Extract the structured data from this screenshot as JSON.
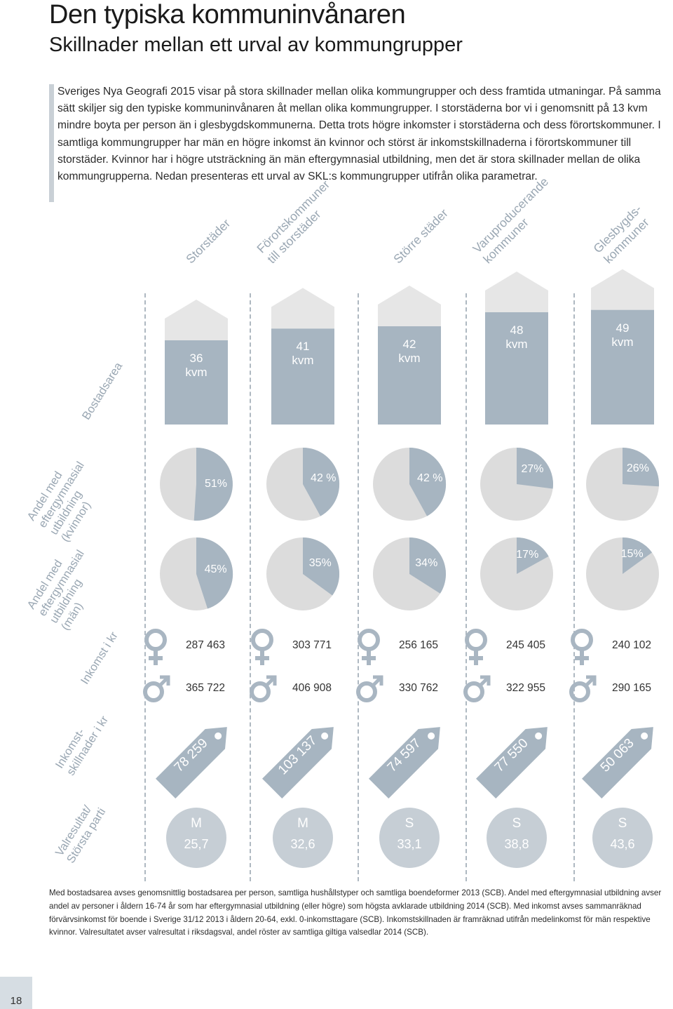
{
  "page": {
    "title": "Den typiska kommuninvånaren",
    "subtitle": "Skillnader mellan ett urval av kommungrupper",
    "intro": "Sveriges Nya Geografi 2015 visar på stora skillnader mellan olika kommungrupper och dess framtida utmaningar. På samma sätt skiljer sig den typiske kommuninvånaren åt mellan olika kommungrupper. I storstäderna bor vi i genomsnitt på 13 kvm mindre boyta per person än i glesbygdskommunerna. Detta trots högre inkomster i storstäderna och dess förortskommuner. I samtliga kommungrupper har män en högre inkomst än kvinnor och störst är inkomstskillnaderna i förortskommuner till storstäder. Kvinnor har i högre utsträckning än män eftergymnasial utbildning, men det är stora skillnader mellan de olika kommungrupperna. Nedan presenteras ett urval av SKL:s kommungrupper utifrån olika parametrar.",
    "footnote": "Med bostadsarea avses genomsnittlig bostadsarea per person, samtliga hushållstyper och samtliga boendeformer 2013 (SCB). Andel med eftergymnasial utbildning avser andel av personer i åldern 16-74 år som har eftergymnasial utbildning (eller högre) som högsta avklarade utbildning 2014 (SCB). Med inkomst avses sammanräknad förvärvsinkomst för boende i Sverige 31/12 2013 i åldern 20-64, exkl. 0-inkomsttagare (SCB). Inkomstskillnaden är framräknad utifrån medelinkomst för män respektive kvinnor. Valresultatet avser valresultat i riksdagsval, andel röster av samtliga giltiga valsedlar 2014 (SCB).",
    "page_number": "18"
  },
  "colors": {
    "accent": "#a7b5c1",
    "light": "#dcdcdc",
    "house_roof": "#e6e6e6",
    "icon": "#a9b6c2",
    "label": "#9aa7b3",
    "circle": "#c6ced5"
  },
  "row_labels": {
    "bostadsarea": "Bostadsarea",
    "women_edu": [
      "Andel med",
      "eftergymnasial",
      "utbildning",
      "(kvinnor)"
    ],
    "men_edu": [
      "Andel med",
      "eftergymnasial",
      "utbildning",
      "(män)"
    ],
    "income": "Inkomst i kr",
    "income_diff": [
      "Inkomst-",
      "skillnader i kr"
    ],
    "election": [
      "Valresultat/",
      "Största parti"
    ]
  },
  "chart_data": {
    "type": "table",
    "title": "Den typiska kommuninvånaren",
    "categories": [
      "Storstäder",
      "Förortskommuner till storstäder",
      "Större städer",
      "Varuproducerande kommuner",
      "Glesbygdskommuner"
    ],
    "header_lines": [
      [
        "Storstäder"
      ],
      [
        "Förortskommuner",
        "till storstäder"
      ],
      [
        "Större städer"
      ],
      [
        "Varuproducerande",
        "kommuner"
      ],
      [
        "Glesbygds-",
        "kommuner"
      ]
    ],
    "housing_kvm": [
      36,
      41,
      42,
      48,
      49
    ],
    "housing_labels": [
      [
        "36",
        "kvm"
      ],
      [
        "41",
        "kvm"
      ],
      [
        "42",
        "kvm"
      ],
      [
        "48",
        "kvm"
      ],
      [
        "49",
        "kvm"
      ]
    ],
    "women_higher_edu_pct": [
      51,
      42,
      42,
      27,
      26
    ],
    "women_edu_labels": [
      "51%",
      "42 %",
      "42 %",
      "27%",
      "26%"
    ],
    "men_higher_edu_pct": [
      45,
      35,
      34,
      17,
      15
    ],
    "men_edu_labels": [
      "45%",
      "35%",
      "34%",
      "17%",
      "15%"
    ],
    "income_women": [
      "287 463",
      "303 771",
      "256 165",
      "245 405",
      "240 102"
    ],
    "income_men": [
      "365 722",
      "406 908",
      "330 762",
      "322 955",
      "290 165"
    ],
    "income_gap": [
      "78 259",
      "103 137",
      "74 597",
      "77 550",
      "50 063"
    ],
    "largest_party": [
      "M",
      "M",
      "S",
      "S",
      "S"
    ],
    "party_share_pct": [
      "25,7",
      "32,6",
      "33,1",
      "38,8",
      "43,6"
    ]
  }
}
